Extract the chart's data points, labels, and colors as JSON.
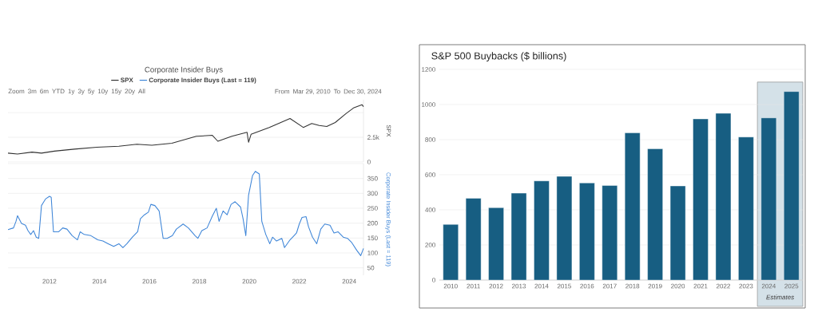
{
  "chart_data": [
    {
      "type": "line",
      "title": "Corporate Insider Buys",
      "ylabel": "SPX",
      "legend": "top",
      "grid": "y",
      "tick_labels": "y",
      "annotations": [
        "Zoom",
        "3m",
        "6m",
        "YTD",
        "1y",
        "3y",
        "5y",
        "10y",
        "15y",
        "20y",
        "All",
        "From",
        "Mar 29, 2010",
        "To",
        "Dec 30, 2024"
      ],
      "series": [
        {
          "name": "SPX",
          "color": "#333333",
          "x": [
            2010.34,
            2010.72,
            2011.3,
            2011.68,
            2012.2,
            2013.0,
            2013.9,
            2014.78,
            2015.5,
            2016.1,
            2016.9,
            2017.88,
            2018.52,
            2018.74,
            2019.3,
            2019.91,
            2019.97,
            2020.07,
            2020.8,
            2021.63,
            2022.16,
            2022.5,
            2022.8,
            2023.1,
            2023.44,
            2023.87,
            2024.19,
            2024.51,
            2024.57
          ],
          "values": [
            900,
            800,
            1000,
            900,
            1100,
            1300,
            1500,
            1600,
            1800,
            1700,
            1900,
            2600,
            2700,
            2100,
            2600,
            3000,
            2000,
            2800,
            3500,
            4400,
            3500,
            3900,
            3700,
            3600,
            4000,
            4900,
            5500,
            5800,
            5600
          ]
        }
      ],
      "xlim": [
        2010.34,
        2024.57
      ],
      "ylim": [
        0,
        6300
      ],
      "yticks": [
        0,
        {
          "value": 2500,
          "label": "2.5k"
        },
        {
          "value": 5000,
          "label": null
        }
      ]
    },
    {
      "type": "line",
      "ylabel": "Corporate Insider Buys (Last = 119)",
      "legend": "top",
      "grid": "y",
      "series": [
        {
          "name": "Corporate Insider Buys (Last = 119)",
          "color": "#3f86d8",
          "x": [
            2010.34,
            2010.56,
            2010.66,
            2010.72,
            2010.88,
            2011.04,
            2011.14,
            2011.25,
            2011.36,
            2011.47,
            2011.57,
            2011.68,
            2011.84,
            2012.0,
            2012.07,
            2012.16,
            2012.37,
            2012.53,
            2012.7,
            2012.91,
            2013.12,
            2013.23,
            2013.39,
            2013.66,
            2013.93,
            2014.14,
            2014.35,
            2014.57,
            2014.78,
            2014.94,
            2015.1,
            2015.32,
            2015.53,
            2015.64,
            2015.8,
            2015.96,
            2016.06,
            2016.22,
            2016.39,
            2016.55,
            2016.71,
            2016.92,
            2017.08,
            2017.35,
            2017.56,
            2017.83,
            2017.94,
            2018.1,
            2018.31,
            2018.52,
            2018.68,
            2018.79,
            2018.95,
            2019.11,
            2019.27,
            2019.43,
            2019.65,
            2019.75,
            2019.86,
            2019.97,
            2020.13,
            2020.24,
            2020.4,
            2020.5,
            2020.66,
            2020.82,
            2020.93,
            2021.09,
            2021.3,
            2021.41,
            2021.63,
            2021.79,
            2021.89,
            2022.0,
            2022.11,
            2022.27,
            2022.37,
            2022.53,
            2022.7,
            2022.86,
            2023.02,
            2023.23,
            2023.39,
            2023.55,
            2023.76,
            2023.93,
            2024.09,
            2024.3,
            2024.46,
            2024.57
          ],
          "values": [
            178,
            184,
            206,
            225,
            199,
            193,
            175,
            162,
            175,
            153,
            149,
            259,
            281,
            290,
            287,
            171,
            171,
            184,
            180,
            158,
            144,
            171,
            162,
            158,
            144,
            140,
            131,
            122,
            131,
            118,
            131,
            153,
            171,
            215,
            228,
            237,
            263,
            259,
            241,
            149,
            149,
            158,
            180,
            197,
            184,
            158,
            149,
            175,
            184,
            224,
            250,
            206,
            241,
            228,
            263,
            272,
            254,
            215,
            158,
            294,
            360,
            374,
            365,
            206,
            162,
            131,
            153,
            140,
            149,
            118,
            144,
            158,
            167,
            197,
            219,
            222,
            188,
            153,
            131,
            180,
            197,
            193,
            167,
            171,
            153,
            149,
            136,
            109,
            91,
            115
          ]
        }
      ],
      "xlim": [
        2010.34,
        2024.57
      ],
      "xticks": [
        2012,
        2014,
        2016,
        2018,
        2020,
        2022,
        2024
      ],
      "ylim": [
        25,
        400
      ],
      "yticks": [
        {
          "value": 400,
          "label": null
        },
        350,
        300,
        250,
        200,
        150,
        100,
        50
      ]
    },
    {
      "type": "bar",
      "title": "S&P 500 Buybacks ($ billions)",
      "grid": "y",
      "color": "#175e82",
      "categories": [
        "2010",
        "2011",
        "2012",
        "2013",
        "2014",
        "2015",
        "2016",
        "2017",
        "2018",
        "2019",
        "2020",
        "2021",
        "2022",
        "2023",
        "2024",
        "2025"
      ],
      "values": [
        317,
        466,
        412,
        495,
        565,
        591,
        553,
        539,
        839,
        748,
        536,
        918,
        950,
        815,
        924,
        1074
      ],
      "ylim": [
        0,
        1200
      ],
      "yticks": [
        0,
        200,
        400,
        600,
        800,
        1000,
        1200
      ],
      "bands": [
        {
          "axis": "x",
          "from": "2024",
          "to": "2025",
          "label": "Estimates",
          "color": "#d4e1e8"
        }
      ]
    }
  ]
}
